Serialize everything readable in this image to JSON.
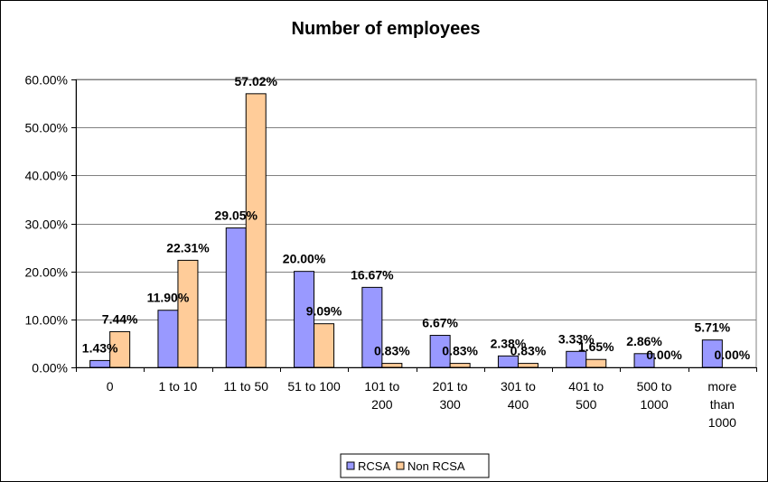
{
  "chart_data": {
    "type": "bar",
    "title": "Number of employees",
    "xlabel": "",
    "ylabel": "",
    "ylim": [
      0,
      0.6
    ],
    "yticks": [
      "0.00%",
      "10.00%",
      "20.00%",
      "30.00%",
      "40.00%",
      "50.00%",
      "60.00%"
    ],
    "grid": true,
    "legend_position": "bottom",
    "categories": [
      [
        "0"
      ],
      [
        "1 to 10"
      ],
      [
        "11 to 50"
      ],
      [
        "51 to 100"
      ],
      [
        "101 to",
        "200"
      ],
      [
        "201 to",
        "300"
      ],
      [
        "301 to",
        "400"
      ],
      [
        "401 to",
        "500"
      ],
      [
        "500 to",
        "1000"
      ],
      [
        "more",
        "than",
        "1000"
      ]
    ],
    "series": [
      {
        "name": "RCSA",
        "color": "#9999ff",
        "values": [
          0.0143,
          0.119,
          0.2905,
          0.2,
          0.1667,
          0.0667,
          0.0238,
          0.0333,
          0.0286,
          0.0571
        ],
        "labels": [
          "1.43%",
          "11.90%",
          "29.05%",
          "20.00%",
          "16.67%",
          "6.67%",
          "2.38%",
          "3.33%",
          "2.86%",
          "5.71%"
        ]
      },
      {
        "name": "Non RCSA",
        "color": "#ffcc99",
        "values": [
          0.0744,
          0.2231,
          0.5702,
          0.0909,
          0.0083,
          0.0083,
          0.0083,
          0.0165,
          0.0,
          0.0
        ],
        "labels": [
          "7.44%",
          "22.31%",
          "57.02%",
          "9.09%",
          "0.83%",
          "0.83%",
          "0.83%",
          "1.65%",
          "0.00%",
          "0.00%"
        ]
      }
    ]
  }
}
